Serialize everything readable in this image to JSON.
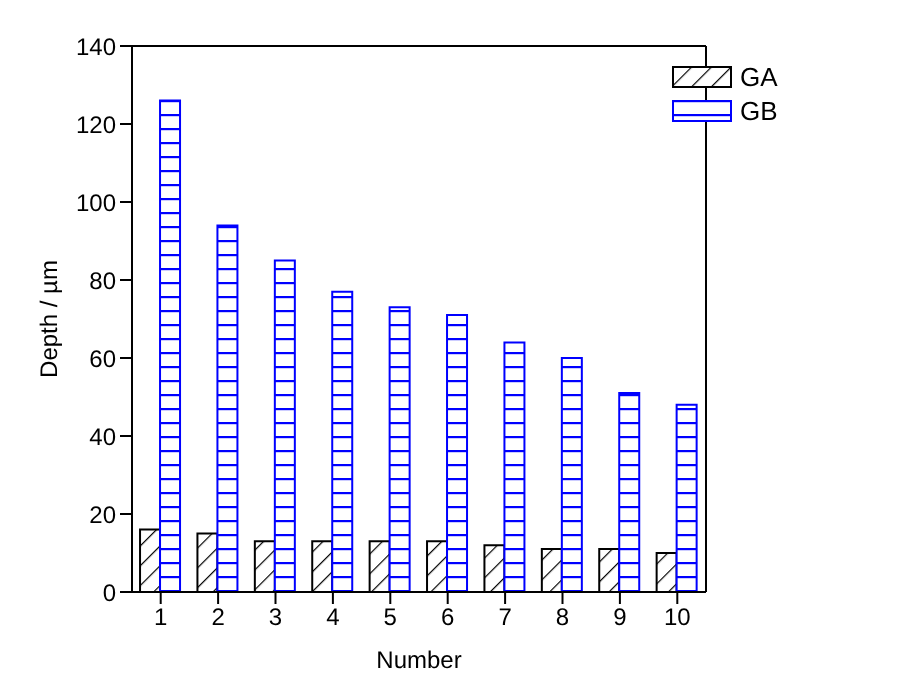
{
  "chart_data": {
    "type": "bar",
    "xlabel": "Number",
    "ylabel": "Depth / µm",
    "categories": [
      "1",
      "2",
      "3",
      "4",
      "5",
      "6",
      "7",
      "8",
      "9",
      "10"
    ],
    "series": [
      {
        "name": "GA",
        "color": "#000000",
        "values": [
          16,
          15,
          13,
          13,
          13,
          13,
          12,
          11,
          11,
          10
        ]
      },
      {
        "name": "GB",
        "color": "#0000ff",
        "values": [
          126,
          94,
          85,
          77,
          73,
          71,
          64,
          60,
          51,
          48
        ]
      }
    ],
    "ylim": [
      0,
      140
    ],
    "yticks": [
      0,
      20,
      40,
      60,
      80,
      100,
      120,
      140
    ],
    "legend": "top right"
  }
}
